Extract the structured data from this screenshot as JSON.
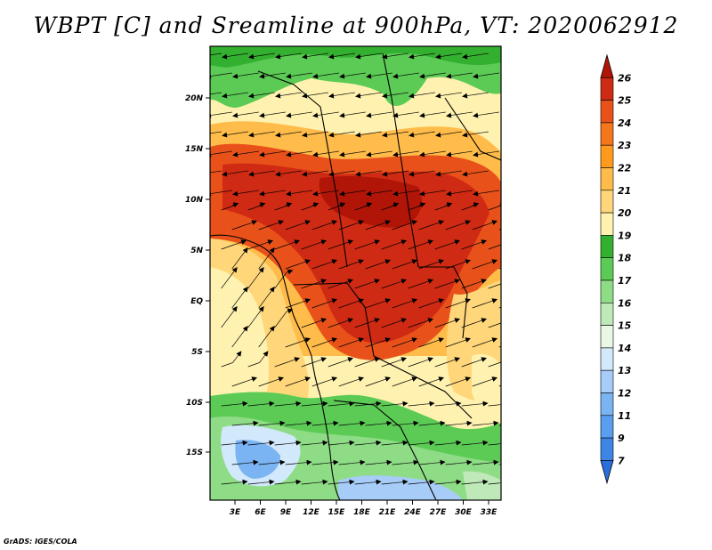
{
  "title": "WBPT [C] and Sreamline at 900hPa, VT: 2020062912",
  "credit": "GrADS: IGES/COLA",
  "lat_labels": [
    "20N",
    "15N",
    "10N",
    "5N",
    "EQ",
    "5S",
    "10S",
    "15S"
  ],
  "lon_labels": [
    "3E",
    "6E",
    "9E",
    "12E",
    "15E",
    "18E",
    "21E",
    "24E",
    "27E",
    "30E",
    "33E"
  ],
  "colorbar": {
    "levels": [
      "7",
      "9",
      "11",
      "12",
      "13",
      "14",
      "15",
      "16",
      "17",
      "18",
      "19",
      "20",
      "21",
      "22",
      "23",
      "24",
      "25",
      "26"
    ],
    "colors": [
      "#2a6fdc",
      "#3d86e6",
      "#5a9ef0",
      "#7ab4f3",
      "#a6ccf7",
      "#d2e8fb",
      "#e9f7e5",
      "#bfe9b8",
      "#8fdc87",
      "#5ccb55",
      "#34b030",
      "#fff2b0",
      "#ffd77a",
      "#ffbc4a",
      "#ff9a1f",
      "#f5761b",
      "#e8521a",
      "#cf2a13",
      "#b01508"
    ]
  }
}
